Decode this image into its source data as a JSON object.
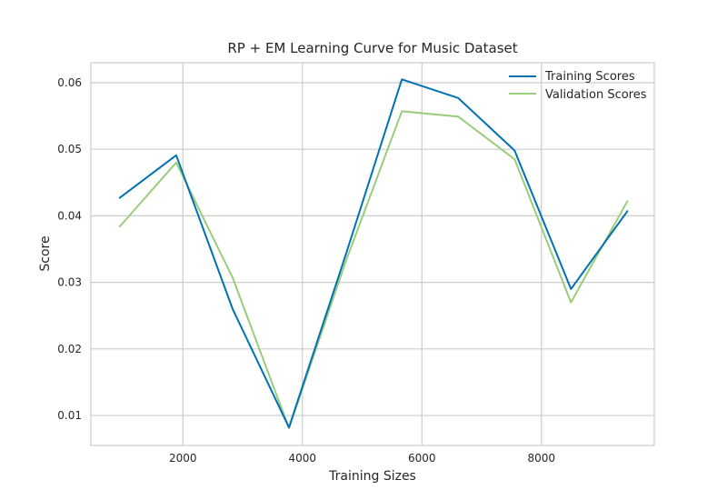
{
  "chart_data": {
    "type": "line",
    "title": "RP + EM Learning Curve for Music Dataset",
    "xlabel": "Training Sizes",
    "ylabel": "Score",
    "xlim": [
      460,
      9890
    ],
    "ylim": [
      0.0055,
      0.063
    ],
    "xticks": [
      2000,
      4000,
      6000,
      8000
    ],
    "xtick_labels": [
      "2000",
      "4000",
      "6000",
      "8000"
    ],
    "yticks": [
      0.01,
      0.02,
      0.03,
      0.04,
      0.05,
      0.06
    ],
    "ytick_labels": [
      "0.01",
      "0.02",
      "0.03",
      "0.04",
      "0.05",
      "0.06"
    ],
    "grid": true,
    "legend_position": "top-right",
    "x": [
      944,
      1888,
      2832,
      3776,
      4720,
      5664,
      6608,
      7552,
      8496,
      9440
    ],
    "series": [
      {
        "name": "Training Scores",
        "color": "#0072B2",
        "values": [
          0.0427,
          0.0491,
          0.026,
          0.0082,
          0.034,
          0.0605,
          0.0577,
          0.0498,
          0.029,
          0.0407
        ]
      },
      {
        "name": "Validation Scores",
        "color": "#9ACD7A",
        "values": [
          0.0384,
          0.048,
          0.0307,
          0.0081,
          0.033,
          0.0557,
          0.0549,
          0.0485,
          0.027,
          0.0422
        ]
      }
    ]
  }
}
